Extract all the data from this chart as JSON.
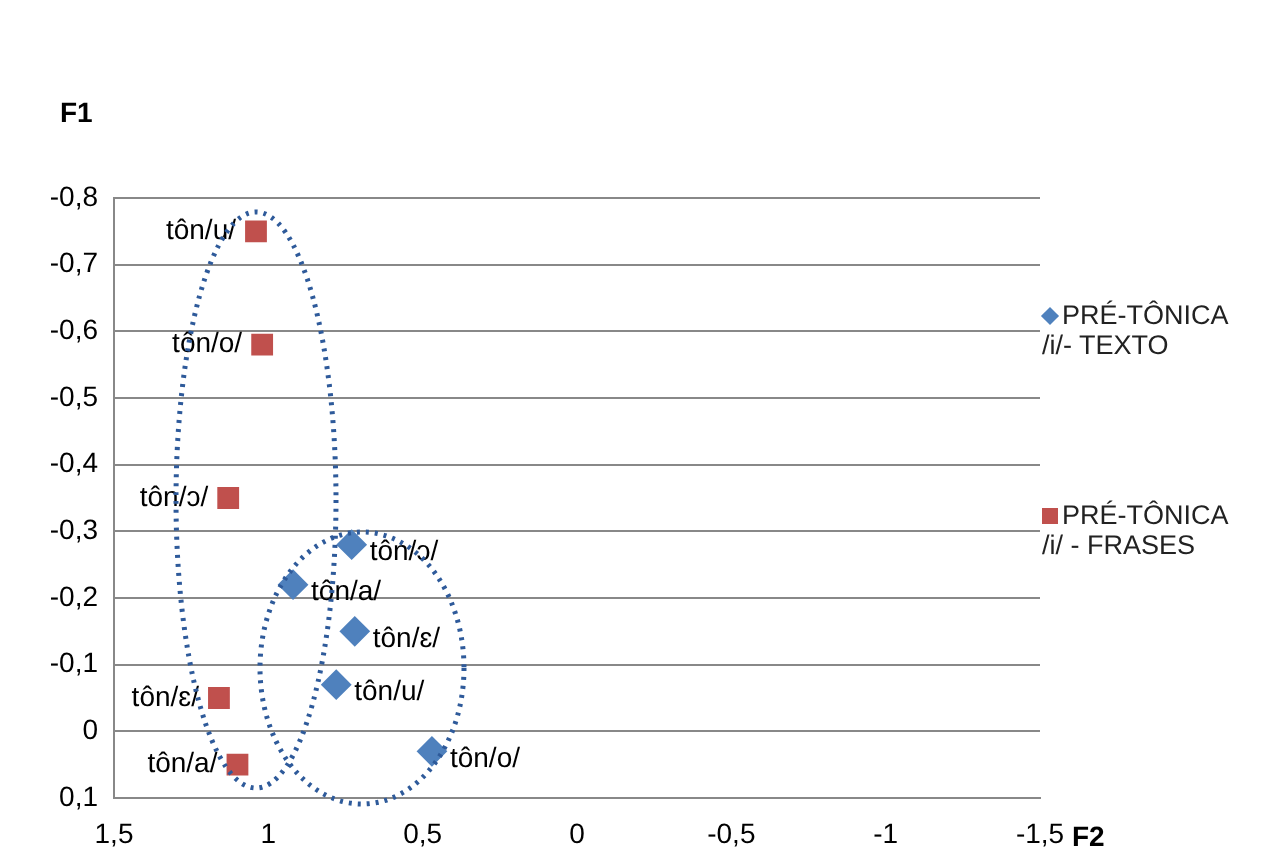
{
  "chart_data": {
    "type": "scatter",
    "xlabel": "F2",
    "ylabel": "F1",
    "xlim": [
      1.5,
      -1.5
    ],
    "ylim": [
      0.1,
      -0.8
    ],
    "xticks": [
      {
        "value": 1.5,
        "label": "1,5"
      },
      1,
      {
        "value": 0.5,
        "label": "0,5"
      },
      0,
      {
        "value": -0.5,
        "label": "-0,5"
      },
      -1,
      {
        "value": -1.5,
        "label": "-1,5"
      }
    ],
    "yticks": [
      {
        "value": 0.1,
        "label": "0,1"
      },
      0,
      {
        "value": -0.1,
        "label": "-0,1"
      },
      {
        "value": -0.2,
        "label": "-0,2"
      },
      {
        "value": -0.3,
        "label": "-0,3"
      },
      {
        "value": -0.4,
        "label": "-0,4"
      },
      {
        "value": -0.5,
        "label": "-0,5"
      },
      {
        "value": -0.6,
        "label": "-0,6"
      },
      {
        "value": -0.7,
        "label": "-0,7"
      },
      {
        "value": -0.8,
        "label": "-0,8"
      }
    ],
    "grid": "y",
    "legend": "right",
    "series": [
      {
        "name": "PRÉ-TÔNICA /i/- TEXTO",
        "color": "#4f81bd",
        "marker": "diamond",
        "x": [
          0.73,
          0.92,
          0.72,
          0.78,
          0.47
        ],
        "values": [
          -0.28,
          -0.22,
          -0.15,
          -0.07,
          0.03
        ],
        "value_labels": [
          "tôn/ɔ/",
          "tôn/a/",
          "tôn/ɛ/",
          "tôn/u/",
          "tôn/o/"
        ]
      },
      {
        "name": "PRÉ-TÔNICA /i/ - FRASES",
        "color": "#c0504d",
        "marker": "square",
        "x": [
          1.04,
          1.02,
          1.13,
          1.16,
          1.1
        ],
        "values": [
          -0.75,
          -0.58,
          -0.35,
          -0.05,
          0.05
        ],
        "value_labels": [
          "tôn/u/",
          "tôn/o/",
          "tôn/ɔ/",
          "tôn/ɛ/",
          "tôn/a/"
        ]
      }
    ]
  }
}
